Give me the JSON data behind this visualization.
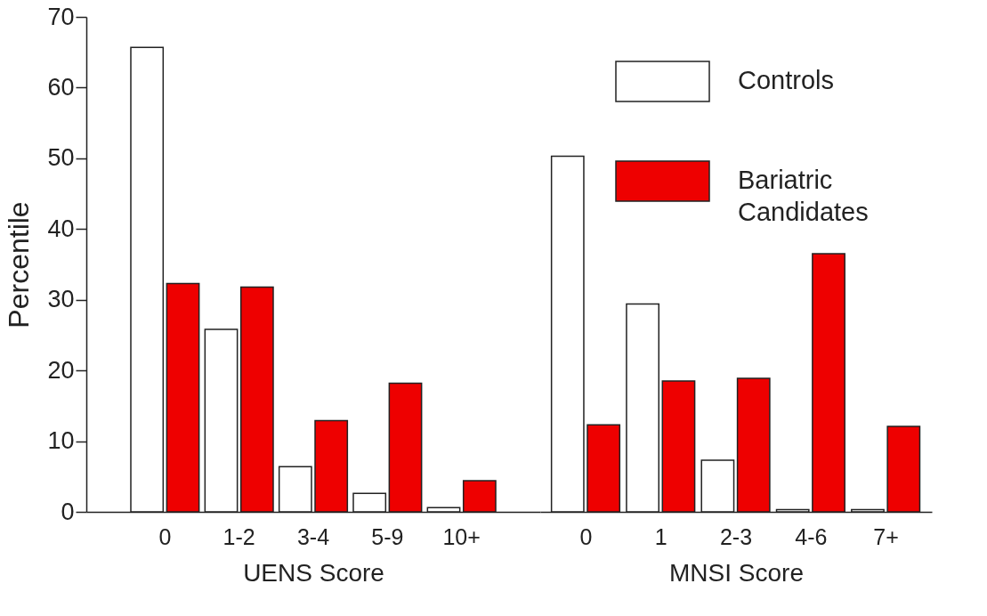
{
  "chart_data": [
    {
      "type": "bar",
      "xlabel": "UENS Score",
      "ylabel": "Percentile",
      "categories": [
        "0",
        "1-2",
        "3-4",
        "5-9",
        "10+"
      ],
      "ylim": [
        0,
        70
      ],
      "yticks": [
        0,
        10,
        20,
        30,
        40,
        50,
        60,
        70
      ],
      "series": [
        {
          "color": "#ffffff",
          "values": [
            65.7,
            25.8,
            6.4,
            2.6,
            0.6
          ]
        },
        {
          "color": "#ee0000",
          "values": [
            32.3,
            31.8,
            12.9,
            18.2,
            4.4
          ]
        }
      ]
    },
    {
      "type": "bar",
      "xlabel": "MNSI Score",
      "categories": [
        "0",
        "1",
        "2-3",
        "4-6",
        "7+"
      ],
      "ylim": [
        0,
        70
      ],
      "tick_labels": "x",
      "legend": "top right",
      "series": [
        {
          "name": "Controls",
          "color": "#ffffff",
          "values": [
            50.3,
            29.4,
            7.3,
            0.3,
            0.3
          ]
        },
        {
          "name": "Bariatric Candidates",
          "color": "#ee0000",
          "values": [
            12.3,
            18.5,
            18.9,
            36.5,
            12.1
          ]
        }
      ]
    }
  ]
}
